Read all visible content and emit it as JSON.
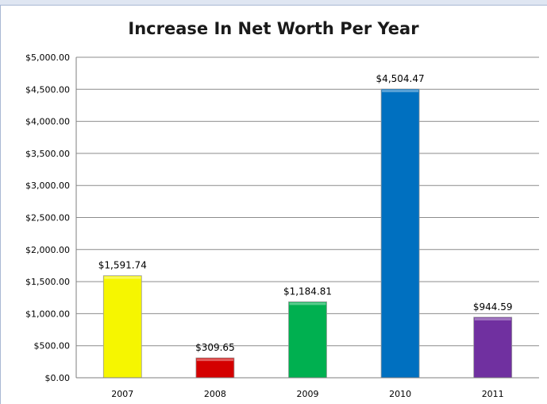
{
  "chart_data": {
    "type": "bar",
    "title": "Increase In Net Worth Per Year",
    "categories": [
      "2007",
      "2008",
      "2009",
      "2010",
      "2011"
    ],
    "values": [
      1591.74,
      309.65,
      1184.81,
      4504.47,
      944.59
    ],
    "value_labels": [
      "$1,591.74",
      "$309.65",
      "$1,184.81",
      "$4,504.47",
      "$944.59"
    ],
    "bar_colors": [
      "#f6f600",
      "#d40000",
      "#00b050",
      "#0070c0",
      "#7030a0"
    ],
    "ylim": [
      0,
      5000
    ],
    "y_ticks": [
      {
        "value": 0,
        "label": "$0.00"
      },
      {
        "value": 500,
        "label": "$500.00"
      },
      {
        "value": 1000,
        "label": "$1,000.00"
      },
      {
        "value": 1500,
        "label": "$1,500.00"
      },
      {
        "value": 2000,
        "label": "$2,000.00"
      },
      {
        "value": 2500,
        "label": "$2,500.00"
      },
      {
        "value": 3000,
        "label": "$3,000.00"
      },
      {
        "value": 3500,
        "label": "$3,500.00"
      },
      {
        "value": 4000,
        "label": "$4,000.00"
      },
      {
        "value": 4500,
        "label": "$4,500.00"
      },
      {
        "value": 5000,
        "label": "$5,000.00"
      }
    ],
    "grid": true,
    "legend": "none"
  }
}
